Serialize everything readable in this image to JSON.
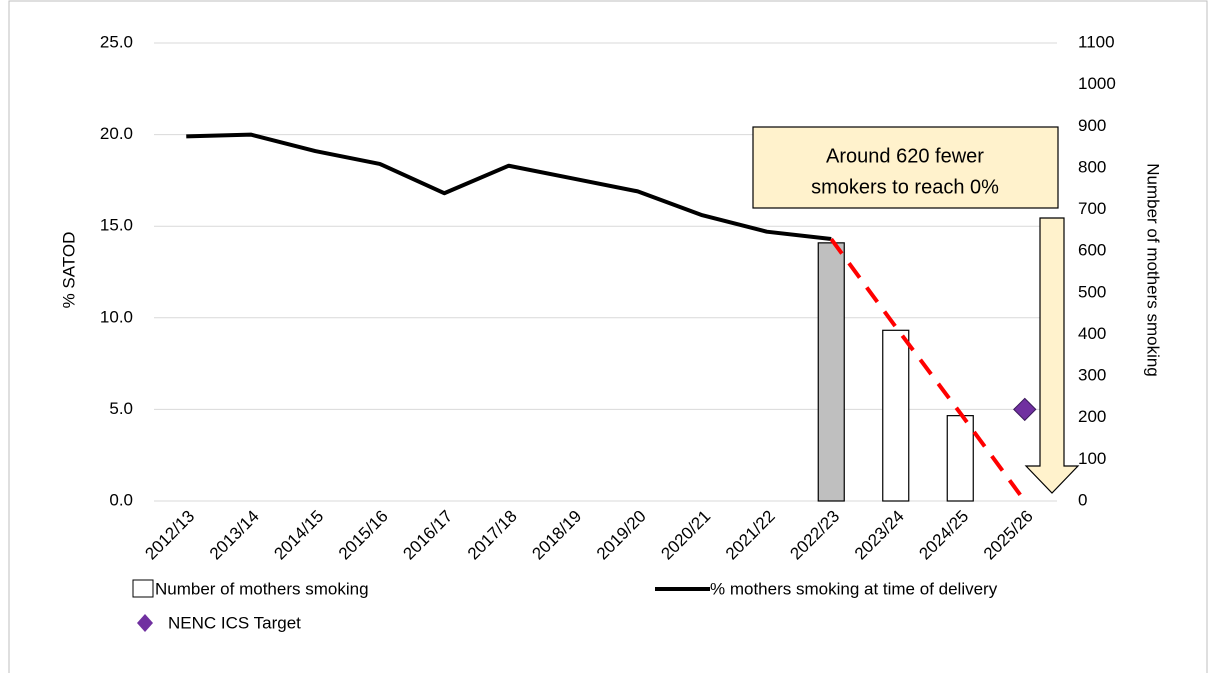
{
  "chart_data": {
    "type": "bar-line",
    "categories": [
      "2012/13",
      "2013/14",
      "2014/15",
      "2015/16",
      "2016/17",
      "2017/18",
      "2018/19",
      "2019/20",
      "2020/21",
      "2021/22",
      "2022/23",
      "2023/24",
      "2024/25",
      "2025/26"
    ],
    "ylabel": "% SATOD",
    "y2label": "Number of mothers smoking",
    "ylim": [
      0,
      25
    ],
    "yticks": [
      {
        "value": 0,
        "label": "0.0"
      },
      {
        "value": 5,
        "label": "5.0"
      },
      {
        "value": 10,
        "label": "10.0"
      },
      {
        "value": 15,
        "label": "15.0"
      },
      {
        "value": 20,
        "label": "20.0"
      },
      {
        "value": 25,
        "label": "25.0"
      }
    ],
    "y2lim": [
      0,
      1100
    ],
    "y2ticks": [
      0,
      100,
      200,
      300,
      400,
      500,
      600,
      700,
      800,
      900,
      1000,
      1100
    ],
    "grid": true,
    "series": [
      {
        "name": "Number of mothers smoking",
        "type": "bar",
        "axis": "y2",
        "color": "#ffffff",
        "bar_colors": [
          null,
          null,
          null,
          null,
          null,
          null,
          null,
          null,
          null,
          null,
          "#bfbfbf",
          "#ffffff",
          "#ffffff",
          null
        ],
        "values": [
          null,
          null,
          null,
          null,
          null,
          null,
          null,
          null,
          null,
          null,
          620,
          410,
          205,
          null
        ]
      },
      {
        "name": "% mothers smoking at time of delivery",
        "type": "line",
        "color": "#000000",
        "values": [
          19.9,
          20.0,
          19.1,
          18.4,
          16.8,
          18.3,
          17.6,
          16.9,
          15.6,
          14.7,
          14.3,
          null,
          null,
          null
        ]
      },
      {
        "type": "dashed-line",
        "color": "#ff0000",
        "values": [
          null,
          null,
          null,
          null,
          null,
          null,
          null,
          null,
          null,
          null,
          14.3,
          9.5,
          4.8,
          0
        ]
      },
      {
        "name": "NENC ICS Target",
        "type": "point",
        "color": "#7030a0",
        "values": [
          null,
          null,
          null,
          null,
          null,
          null,
          null,
          null,
          null,
          null,
          null,
          null,
          null,
          5.0
        ]
      }
    ],
    "annotation": [
      "Around 620 fewer",
      "smokers to reach 0%"
    ]
  }
}
